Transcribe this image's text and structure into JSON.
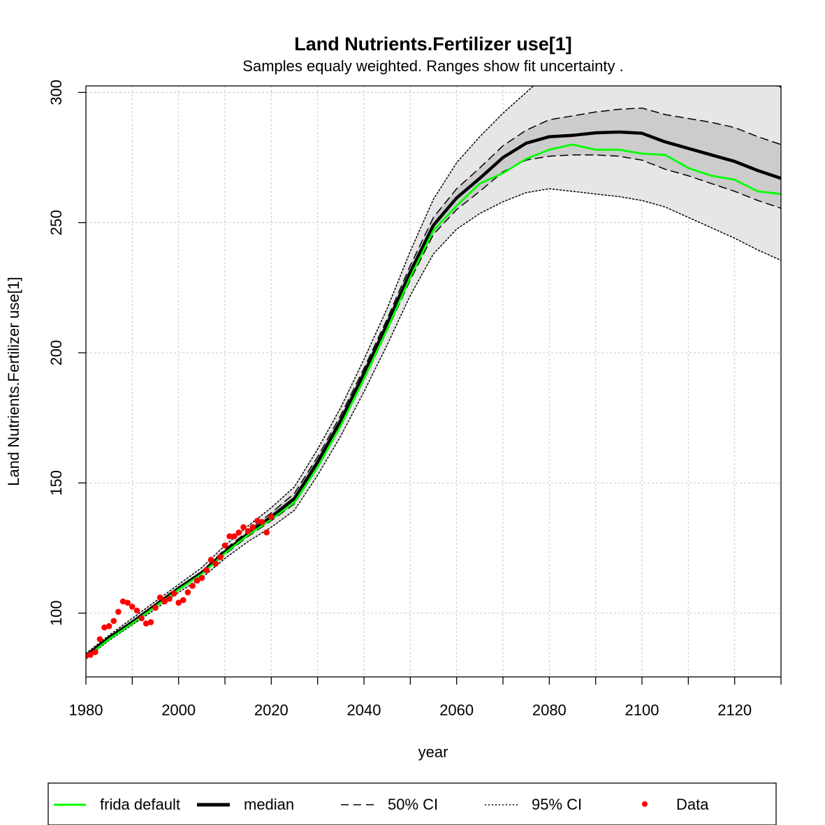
{
  "chart_data": {
    "type": "line",
    "title": "Land Nutrients.Fertilizer use[1]",
    "subtitle": "Samples equaly weighted. Ranges show  fit uncertainty .",
    "xlabel": "year",
    "ylabel": "Land Nutrients.Fertilizer use[1]",
    "xlim": [
      1980,
      2130
    ],
    "ylim": [
      75.5,
      302.5
    ],
    "x_ticks": [
      1980,
      2000,
      2020,
      2040,
      2060,
      2080,
      2100,
      2120
    ],
    "x_minor_ticks": [
      1990,
      2010,
      2030,
      2050,
      2070,
      2090,
      2110,
      2130
    ],
    "y_ticks": [
      100,
      150,
      200,
      250,
      300
    ],
    "grid": true,
    "legend_position": "bottom",
    "legend": [
      "frida default",
      "median",
      "50% CI",
      "95% CI",
      "Data"
    ],
    "colors": {
      "frida_default": "#00ff00",
      "median": "#000000",
      "band_95": "#e6e6e6",
      "band_50": "#cccccc",
      "data": "#ff0000",
      "grid": "#c8c8c8"
    },
    "x": [
      1980,
      1985,
      1990,
      1995,
      2000,
      2005,
      2010,
      2015,
      2020,
      2025,
      2030,
      2035,
      2040,
      2045,
      2050,
      2055,
      2060,
      2065,
      2070,
      2075,
      2080,
      2085,
      2090,
      2095,
      2100,
      2105,
      2110,
      2115,
      2120,
      2125,
      2130
    ],
    "series": [
      {
        "name": "median",
        "values": [
          83.5,
          90.5,
          96.5,
          103,
          109.5,
          115.5,
          123.5,
          130.5,
          137,
          144,
          158,
          174,
          192,
          211,
          231,
          249,
          259.5,
          267,
          275,
          280.5,
          283,
          283.5,
          284.5,
          284.8,
          284.3,
          281,
          278.5,
          276,
          273.5,
          270,
          267
        ]
      },
      {
        "name": "frida default",
        "values": [
          83,
          90,
          96,
          102.5,
          109,
          115,
          123,
          130,
          136,
          142.5,
          156,
          172,
          190,
          209,
          229,
          247,
          256.5,
          265,
          269,
          274.5,
          278,
          280,
          278,
          278,
          276.5,
          276,
          271,
          268,
          266.5,
          262,
          261
        ]
      },
      {
        "name": "50% CI upper",
        "values": [
          84,
          91,
          97,
          103.5,
          110,
          116,
          124.5,
          131.5,
          138.5,
          146,
          160,
          176,
          194,
          213,
          233.5,
          252,
          263,
          271,
          279.5,
          285.5,
          289.5,
          291,
          292.5,
          293.5,
          294,
          291.5,
          290,
          288.5,
          286.5,
          283,
          280
        ]
      },
      {
        "name": "50% CI lower",
        "values": [
          83,
          90,
          96,
          102.5,
          109,
          115,
          122.5,
          129.5,
          135.5,
          142,
          156,
          172,
          189.5,
          208.5,
          228,
          245.5,
          255,
          262,
          269.5,
          274,
          275.5,
          276,
          276,
          275.5,
          274,
          270.5,
          268,
          265,
          262,
          258.5,
          255.5
        ]
      },
      {
        "name": "95% CI upper",
        "values": [
          84.5,
          91.5,
          98,
          104.5,
          111,
          117.5,
          126,
          133.5,
          140.5,
          148.5,
          163,
          179,
          197.5,
          217,
          239,
          259,
          273,
          283,
          292,
          300,
          308,
          312,
          314,
          315,
          315,
          314,
          313,
          311,
          309,
          305,
          302
        ]
      },
      {
        "name": "95% CI lower",
        "values": [
          82.5,
          89.5,
          95.5,
          101.5,
          108,
          113.5,
          121,
          127.5,
          133,
          139.5,
          153,
          168,
          185,
          203,
          222,
          238,
          247.5,
          253.5,
          258,
          261.5,
          263,
          262,
          261,
          260,
          258.5,
          256,
          252,
          248,
          244,
          239.5,
          235.5
        ]
      }
    ],
    "data_points": {
      "name": "Data",
      "x": [
        1980,
        1981,
        1982,
        1983,
        1984,
        1985,
        1986,
        1987,
        1988,
        1989,
        1990,
        1991,
        1992,
        1993,
        1994,
        1995,
        1996,
        1997,
        1998,
        1999,
        2000,
        2001,
        2002,
        2003,
        2004,
        2005,
        2006,
        2007,
        2008,
        2009,
        2010,
        2011,
        2012,
        2013,
        2014,
        2015,
        2016,
        2017,
        2018,
        2019,
        2020
      ],
      "y": [
        83.5,
        84,
        85,
        90,
        94.5,
        95,
        97,
        100.5,
        104.5,
        104,
        102.5,
        101,
        98,
        96,
        96.5,
        102,
        106,
        104.5,
        105.5,
        107.5,
        104,
        105,
        108,
        110.5,
        112.5,
        113.5,
        116.5,
        120.5,
        119,
        121.5,
        126,
        129.5,
        129.5,
        131,
        133,
        131.5,
        133,
        135.5,
        135,
        131,
        137
      ]
    }
  }
}
